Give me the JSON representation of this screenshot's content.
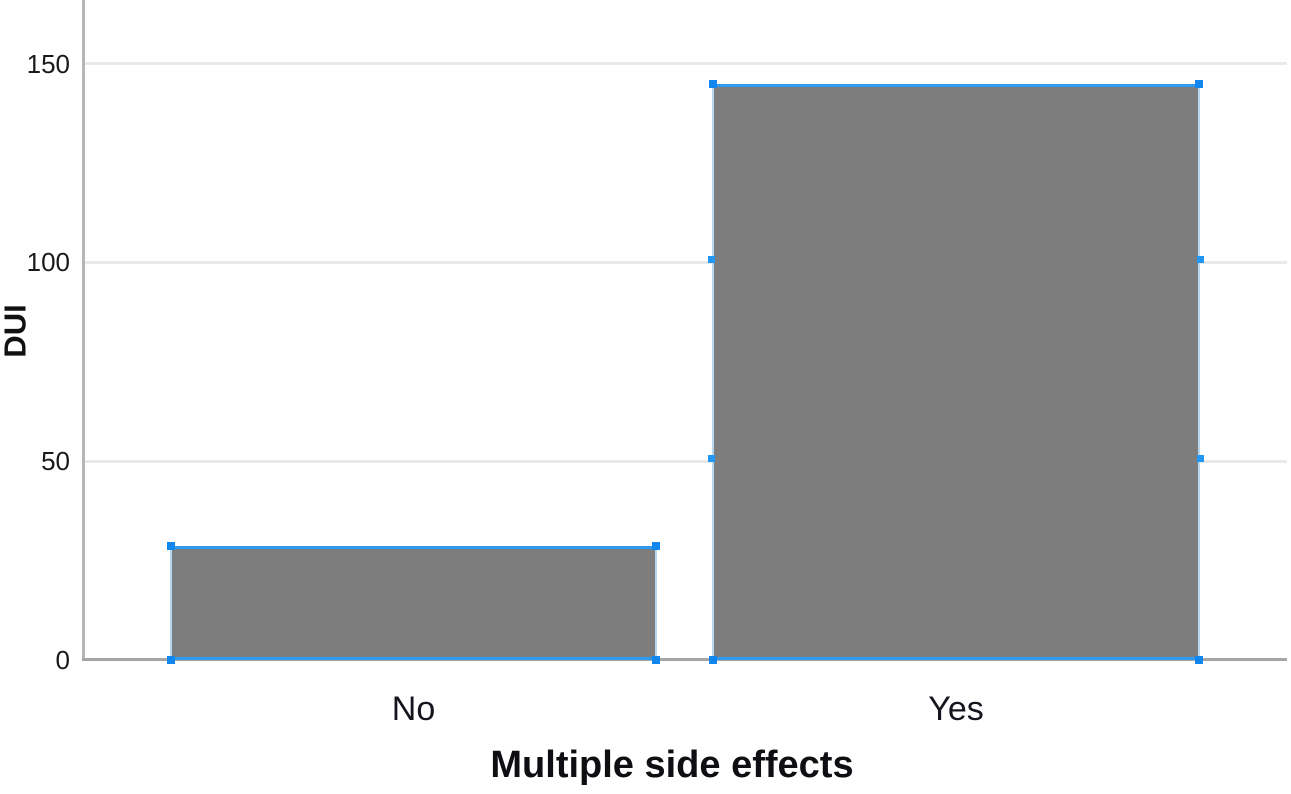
{
  "chart_data": {
    "type": "bar",
    "title": "",
    "xlabel": "Multiple side effects",
    "ylabel": "DUI",
    "categories": [
      "No",
      "Yes"
    ],
    "values": [
      28,
      144
    ],
    "yticks": [
      0,
      50,
      100,
      150
    ],
    "ylim": [
      0,
      166
    ],
    "grid": "horizontal gridlines at 50/100/150",
    "legend": "none",
    "bars_selected": true,
    "colors": {
      "bar_fill": "#7d7d7d",
      "selection_blue": "#2196f3",
      "bar_edge_blue": "#2e9bee",
      "gridline": "#e9e9e9",
      "axis_line": "#a6a6a6",
      "text": "#111111"
    }
  }
}
